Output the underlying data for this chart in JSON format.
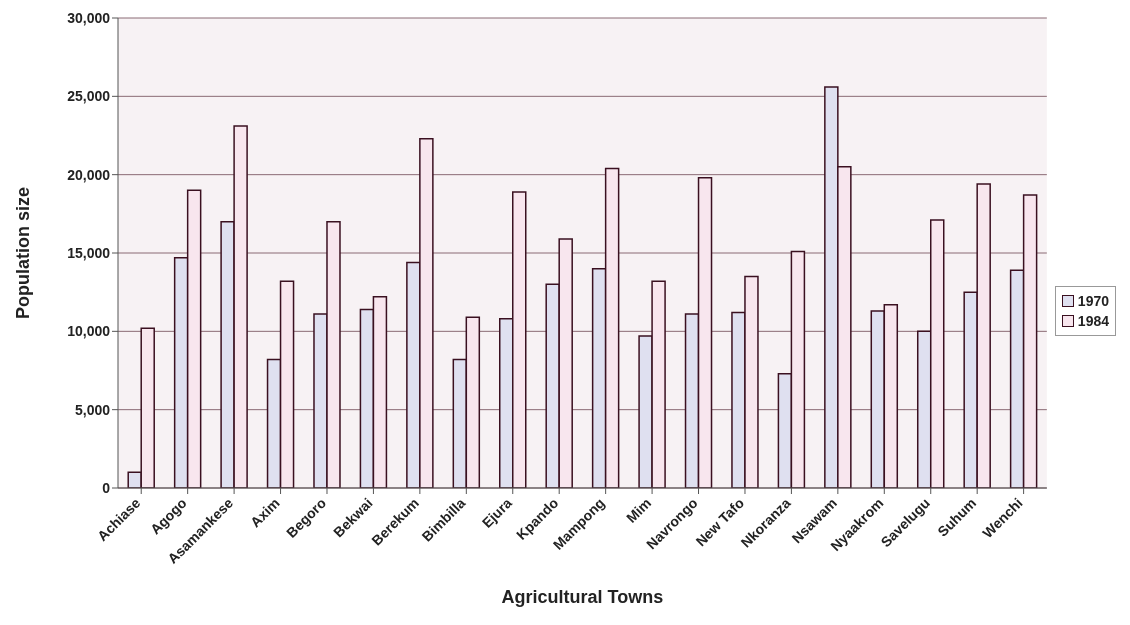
{
  "chart_data": {
    "type": "bar",
    "xlabel": "Agricultural Towns",
    "ylabel": "Population size",
    "categories": [
      "Achiase",
      "Agogo",
      "Asamankese",
      "Axim",
      "Begoro",
      "Bekwai",
      "Berekum",
      "Bimbilla",
      "Ejura",
      "Kpando",
      "Mampong",
      "Mim",
      "Navrongo",
      "New Tafo",
      "Nkoranza",
      "Nsawam",
      "Nyaakrom",
      "Savelugu",
      "Suhum",
      "Wenchi"
    ],
    "series": [
      {
        "name": "1970",
        "color": "#dfe0f0",
        "values": [
          1000,
          14700,
          17000,
          8200,
          11100,
          11400,
          14400,
          8200,
          10800,
          13000,
          14000,
          9700,
          11100,
          11200,
          7300,
          25600,
          11300,
          10000,
          12500,
          13900
        ]
      },
      {
        "name": "1984",
        "color": "#f8e6ee",
        "values": [
          10200,
          19000,
          23100,
          13200,
          17000,
          12200,
          22300,
          10900,
          18900,
          15900,
          20400,
          13200,
          19800,
          13500,
          15100,
          20500,
          11700,
          17100,
          19400,
          18700
        ]
      }
    ],
    "ylim": [
      0,
      30000
    ],
    "yticks": [
      {
        "value": 0,
        "label": "0"
      },
      {
        "value": 5000,
        "label": "5,000"
      },
      {
        "value": 10000,
        "label": "10,000"
      },
      {
        "value": 15000,
        "label": "15,000"
      },
      {
        "value": 20000,
        "label": "20,000"
      },
      {
        "value": 25000,
        "label": "25,000"
      },
      {
        "value": 30000,
        "label": "30,000"
      }
    ],
    "grid": "y",
    "legend": "right"
  }
}
